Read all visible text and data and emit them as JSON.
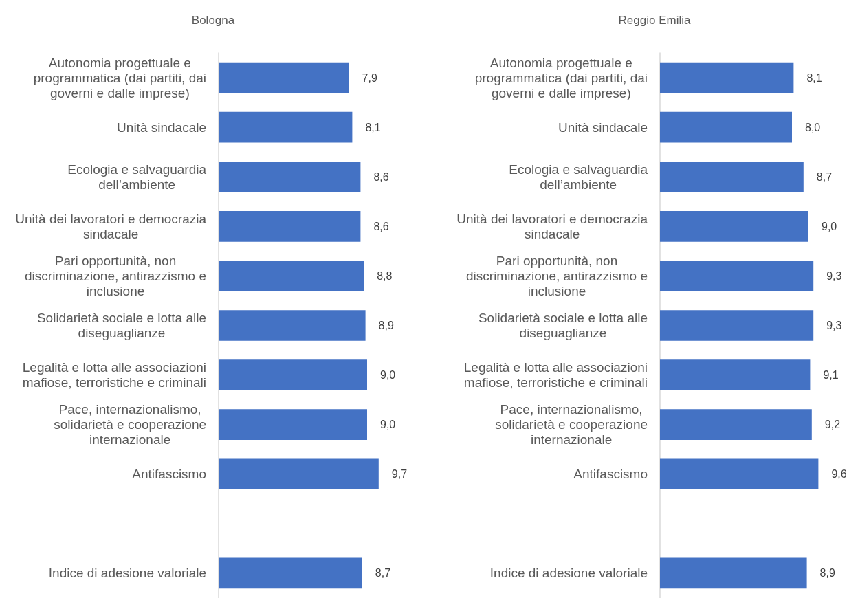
{
  "chart_data": [
    {
      "type": "bar",
      "orientation": "horizontal",
      "title": "Bologna",
      "categories": [
        "Autonomia progettuale e programmatica (dai partiti, dai governi e dalle imprese)",
        "Unità sindacale",
        "Ecologia e salvaguardia dell’ambiente",
        "Unità dei lavoratori e democrazia sindacale",
        "Pari opportunità, non discriminazione, antirazzismo e inclusione",
        "Solidarietà sociale e lotta alle diseguaglianze",
        "Legalità e lotta alle associazioni mafiose, terroristiche e criminali",
        "Pace, internazionalismo, solidarietà e cooperazione internazionale",
        "Antifascismo",
        null,
        "Indice di adesione valoriale"
      ],
      "values": [
        7.9,
        8.1,
        8.6,
        8.6,
        8.8,
        8.9,
        9.0,
        9.0,
        9.7,
        null,
        8.7
      ],
      "value_labels": [
        "7,9",
        "8,1",
        "8,6",
        "8,6",
        "8,8",
        "8,9",
        "9,0",
        "9,0",
        "9,7",
        null,
        "8,7"
      ],
      "color": "#4472c4",
      "tick_labels": "y"
    },
    {
      "type": "bar",
      "orientation": "horizontal",
      "title": "Reggio Emilia",
      "categories": [
        "Autonomia progettuale e programmatica (dai partiti, dai governi e dalle imprese)",
        "Unità sindacale",
        "Ecologia e salvaguardia dell’ambiente",
        "Unità dei lavoratori e democrazia sindacale",
        "Pari opportunità, non discriminazione, antirazzismo e inclusione",
        "Solidarietà sociale e lotta alle diseguaglianze",
        "Legalità e lotta alle associazioni mafiose, terroristiche e criminali",
        "Pace, internazionalismo, solidarietà e cooperazione internazionale",
        "Antifascismo",
        null,
        "Indice di adesione valoriale"
      ],
      "values": [
        8.1,
        8.0,
        8.7,
        9.0,
        9.3,
        9.3,
        9.1,
        9.2,
        9.6,
        null,
        8.9
      ],
      "value_labels": [
        "8,1",
        "8,0",
        "8,7",
        "9,0",
        "9,3",
        "9,3",
        "9,1",
        "9,2",
        "9,6",
        null,
        "8,9"
      ],
      "color": "#4472c4",
      "tick_labels": "y"
    }
  ]
}
